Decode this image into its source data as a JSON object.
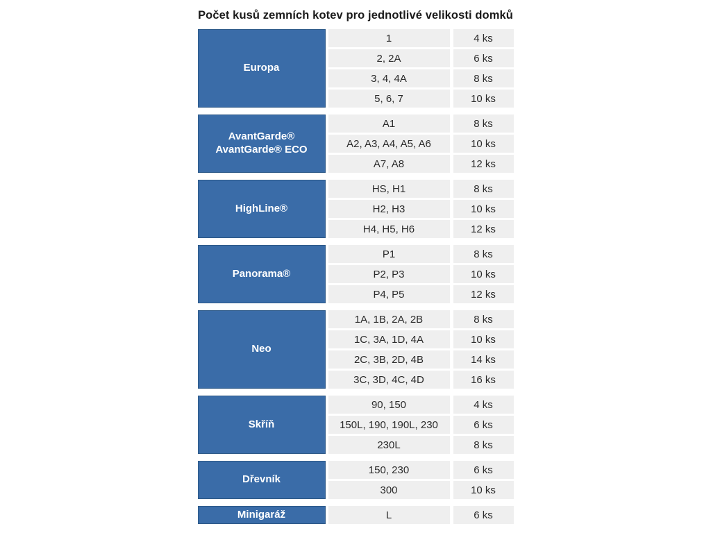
{
  "title": "Počet kusů zemních kotev pro jednotlivé velikosti domků",
  "colors": {
    "group_bg": "#3a6ca8",
    "group_border": "#2d5988",
    "group_text": "#ffffff",
    "row_bg": "#efefef",
    "cell_text": "#2b2b2b",
    "title_text": "#1a1a1a"
  },
  "chart_data": {
    "type": "table",
    "title": "Počet kusů zemních kotev pro jednotlivé velikosti domků",
    "unit": "ks",
    "groups": [
      {
        "label_lines": [
          "Europa"
        ],
        "rows": [
          {
            "models": "1",
            "qty": "4 ks"
          },
          {
            "models": "2, 2A",
            "qty": "6 ks"
          },
          {
            "models": "3, 4, 4A",
            "qty": "8 ks"
          },
          {
            "models": "5, 6, 7",
            "qty": "10 ks"
          }
        ]
      },
      {
        "label_lines": [
          "AvantGarde®",
          "AvantGarde® ECO"
        ],
        "rows": [
          {
            "models": "A1",
            "qty": "8 ks"
          },
          {
            "models": "A2, A3, A4, A5, A6",
            "qty": "10 ks"
          },
          {
            "models": "A7, A8",
            "qty": "12 ks"
          }
        ]
      },
      {
        "label_lines": [
          "HighLine®"
        ],
        "rows": [
          {
            "models": "HS, H1",
            "qty": "8 ks"
          },
          {
            "models": "H2, H3",
            "qty": "10 ks"
          },
          {
            "models": "H4, H5, H6",
            "qty": "12 ks"
          }
        ]
      },
      {
        "label_lines": [
          "Panorama®"
        ],
        "rows": [
          {
            "models": "P1",
            "qty": "8 ks"
          },
          {
            "models": "P2, P3",
            "qty": "10 ks"
          },
          {
            "models": "P4, P5",
            "qty": "12 ks"
          }
        ]
      },
      {
        "label_lines": [
          "Neo"
        ],
        "rows": [
          {
            "models": "1A, 1B, 2A, 2B",
            "qty": "8 ks"
          },
          {
            "models": "1C, 3A, 1D, 4A",
            "qty": "10 ks"
          },
          {
            "models": "2C, 3B, 2D, 4B",
            "qty": "14 ks"
          },
          {
            "models": "3C, 3D, 4C, 4D",
            "qty": "16 ks"
          }
        ]
      },
      {
        "label_lines": [
          "Skříň"
        ],
        "rows": [
          {
            "models": "90, 150",
            "qty": "4 ks"
          },
          {
            "models": "150L, 190, 190L, 230",
            "qty": "6 ks"
          },
          {
            "models": "230L",
            "qty": "8 ks"
          }
        ]
      },
      {
        "label_lines": [
          "Dřevník"
        ],
        "rows": [
          {
            "models": "150, 230",
            "qty": "6 ks"
          },
          {
            "models": "300",
            "qty": "10 ks"
          }
        ]
      },
      {
        "label_lines": [
          "Minigaráž"
        ],
        "rows": [
          {
            "models": "L",
            "qty": "6 ks"
          }
        ]
      }
    ]
  }
}
